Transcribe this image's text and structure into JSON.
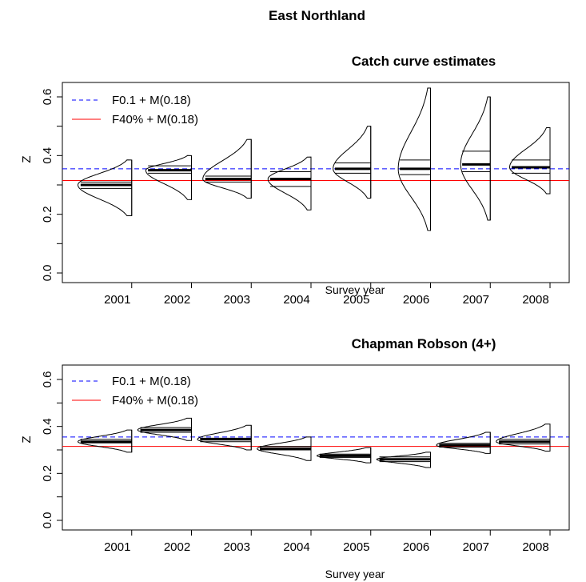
{
  "figure": {
    "title": "East Northland"
  },
  "chart_data": [
    {
      "type": "violin",
      "title": "Catch curve estimates",
      "xlabel": "Survey year",
      "ylabel": "Z",
      "xlim": [
        2000,
        2008
      ],
      "ylim": [
        0.0,
        0.6
      ],
      "yticks": [
        0.0,
        0.2,
        0.4,
        0.6
      ],
      "yticks_minor": [
        0.1,
        0.3,
        0.5
      ],
      "xticks": [
        2001,
        2002,
        2003,
        2004,
        2005,
        2006,
        2007,
        2008
      ],
      "grid": false,
      "legend_position": "top-left",
      "reference_lines": [
        {
          "label": "F0.1 + M(0.18)",
          "value": 0.355,
          "color": "#0000ff",
          "dash": "dashed"
        },
        {
          "label": "F40% + M(0.18)",
          "value": 0.315,
          "color": "#ff0000",
          "dash": "solid"
        }
      ],
      "distributions": [
        {
          "year": 2001,
          "median": 0.3,
          "ymin": 0.195,
          "ymax": 0.385,
          "lines": [
            0.3,
            0.31,
            0.288
          ],
          "scale": 1.0
        },
        {
          "year": 2002,
          "median": 0.35,
          "ymin": 0.25,
          "ymax": 0.4,
          "lines": [
            0.35,
            0.365,
            0.34
          ],
          "scale": 0.85
        },
        {
          "year": 2003,
          "median": 0.32,
          "ymin": 0.255,
          "ymax": 0.455,
          "lines": [
            0.32,
            0.33,
            0.31
          ],
          "scale": 0.9
        },
        {
          "year": 2004,
          "median": 0.32,
          "ymin": 0.215,
          "ymax": 0.395,
          "lines": [
            0.32,
            0.345,
            0.295
          ],
          "scale": 0.8
        },
        {
          "year": 2005,
          "median": 0.355,
          "ymin": 0.255,
          "ymax": 0.5,
          "lines": [
            0.355,
            0.375,
            0.34
          ],
          "scale": 0.7
        },
        {
          "year": 2006,
          "median": 0.355,
          "ymin": 0.145,
          "ymax": 0.63,
          "lines": [
            0.355,
            0.385,
            0.335
          ],
          "scale": 0.6
        },
        {
          "year": 2007,
          "median": 0.37,
          "ymin": 0.18,
          "ymax": 0.6,
          "lines": [
            0.37,
            0.415,
            0.345
          ],
          "scale": 0.55
        },
        {
          "year": 2008,
          "median": 0.36,
          "ymin": 0.27,
          "ymax": 0.495,
          "lines": [
            0.36,
            0.385,
            0.34
          ],
          "scale": 0.75
        }
      ]
    },
    {
      "type": "violin",
      "title": "Chapman Robson (4+)",
      "xlabel": "Survey year",
      "ylabel": "Z",
      "xlim": [
        2000,
        2008
      ],
      "ylim": [
        0.0,
        0.6
      ],
      "yticks": [
        0.0,
        0.2,
        0.4,
        0.6
      ],
      "yticks_minor": [
        0.1,
        0.3,
        0.5
      ],
      "xticks": [
        2001,
        2002,
        2003,
        2004,
        2005,
        2006,
        2007,
        2008
      ],
      "grid": false,
      "legend_position": "top-left",
      "reference_lines": [
        {
          "label": "F0.1 + M(0.18)",
          "value": 0.355,
          "color": "#0000ff",
          "dash": "dashed"
        },
        {
          "label": "F40% + M(0.18)",
          "value": 0.315,
          "color": "#ff0000",
          "dash": "solid"
        }
      ],
      "distributions": [
        {
          "year": 2001,
          "median": 0.335,
          "ymin": 0.29,
          "ymax": 0.385,
          "lines": [
            0.335,
            0.345,
            0.33
          ],
          "scale": 1.0
        },
        {
          "year": 2002,
          "median": 0.385,
          "ymin": 0.34,
          "ymax": 0.435,
          "lines": [
            0.385,
            0.395,
            0.375
          ],
          "scale": 1.0
        },
        {
          "year": 2003,
          "median": 0.345,
          "ymin": 0.3,
          "ymax": 0.405,
          "lines": [
            0.345,
            0.35,
            0.335
          ],
          "scale": 1.0
        },
        {
          "year": 2004,
          "median": 0.305,
          "ymin": 0.255,
          "ymax": 0.355,
          "lines": [
            0.305,
            0.315,
            0.3
          ],
          "scale": 1.0
        },
        {
          "year": 2005,
          "median": 0.275,
          "ymin": 0.245,
          "ymax": 0.31,
          "lines": [
            0.275,
            0.282,
            0.268
          ],
          "scale": 1.0
        },
        {
          "year": 2006,
          "median": 0.26,
          "ymin": 0.225,
          "ymax": 0.29,
          "lines": [
            0.26,
            0.27,
            0.25
          ],
          "scale": 1.0
        },
        {
          "year": 2007,
          "median": 0.32,
          "ymin": 0.285,
          "ymax": 0.375,
          "lines": [
            0.32,
            0.328,
            0.312
          ],
          "scale": 1.0
        },
        {
          "year": 2008,
          "median": 0.335,
          "ymin": 0.295,
          "ymax": 0.41,
          "lines": [
            0.335,
            0.345,
            0.325
          ],
          "scale": 1.0
        }
      ]
    }
  ]
}
